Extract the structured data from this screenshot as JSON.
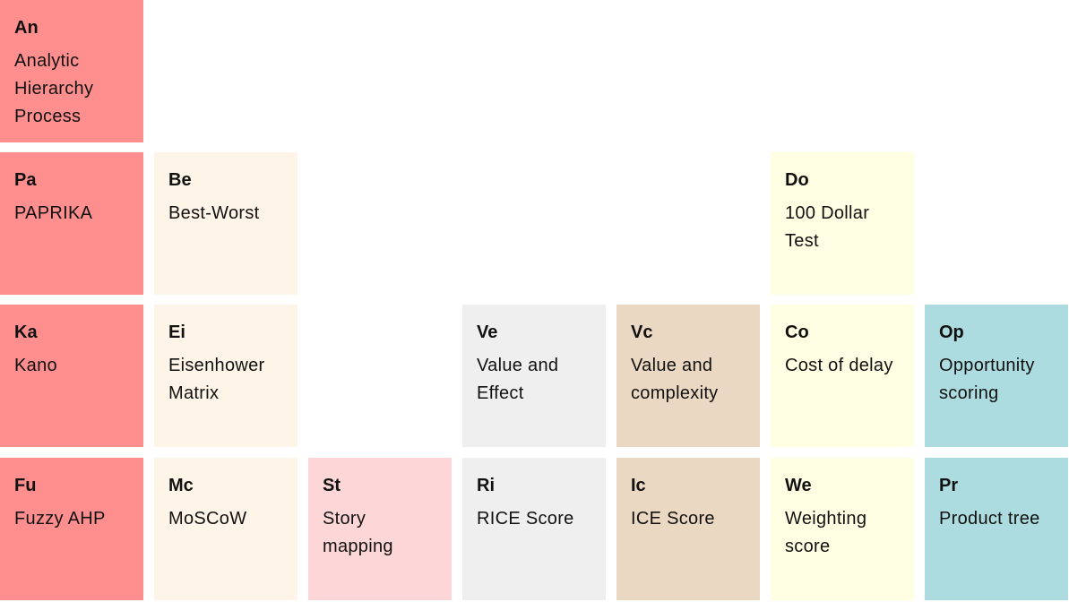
{
  "tiles": [
    {
      "abbr": "An",
      "name": "Analytic Hierarchy Process"
    },
    {
      "abbr": "Pa",
      "name": "PAPRIKA"
    },
    {
      "abbr": "Be",
      "name": "Best-Worst"
    },
    {
      "abbr": "Do",
      "name": "100 Dollar Test"
    },
    {
      "abbr": "Ka",
      "name": "Kano"
    },
    {
      "abbr": "Ei",
      "name": "Eisenhower Matrix"
    },
    {
      "abbr": "Ve",
      "name": "Value and Effect"
    },
    {
      "abbr": "Vc",
      "name": "Value and complexity"
    },
    {
      "abbr": "Co",
      "name": "Cost of delay"
    },
    {
      "abbr": "Op",
      "name": "Opportunity scoring"
    },
    {
      "abbr": "Fu",
      "name": "Fuzzy AHP"
    },
    {
      "abbr": "Mc",
      "name": "MoSCoW"
    },
    {
      "abbr": "St",
      "name": "Story mapping"
    },
    {
      "abbr": "Ri",
      "name": "RICE Score"
    },
    {
      "abbr": "Ic",
      "name": "ICE Score"
    },
    {
      "abbr": "We",
      "name": "Weighting score"
    },
    {
      "abbr": "Pr",
      "name": "Product tree"
    }
  ]
}
